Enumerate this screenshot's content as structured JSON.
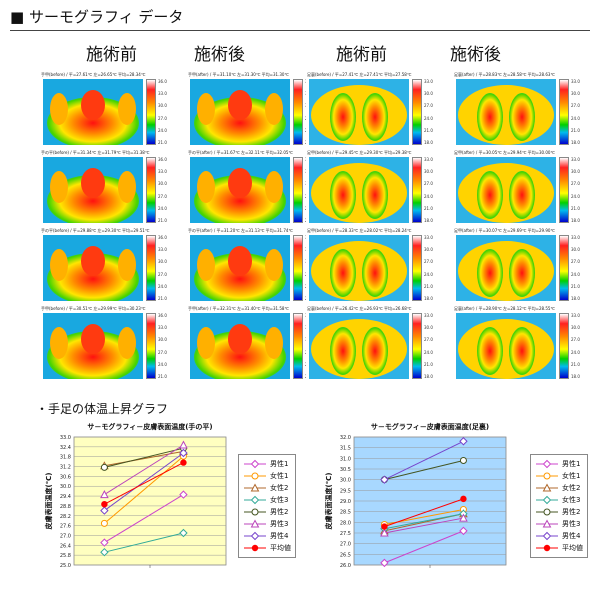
{
  "header": {
    "title": "■ サーモグラフィ データ"
  },
  "left_group": {
    "before_label": "施術前",
    "after_label": "施術後",
    "panels": [
      {
        "caption": "手甲(before) / 平=27.61℃ 左=26.65℃ 平均=28.34℃",
        "ticks": [
          "36.0",
          "33.0",
          "30.0",
          "27.0",
          "24.0",
          "21.0"
        ]
      },
      {
        "caption": "手甲(after) / 平=31.10℃ 左=31.30℃ 平均=31.30℃",
        "ticks": [
          "36.0",
          "33.0",
          "30.0",
          "27.0",
          "24.0",
          "21.0"
        ]
      },
      {
        "caption": "手の平(before) / 平=31.34℃ 左=31.79℃ 平均=31.38℃",
        "ticks": [
          "36.0",
          "33.0",
          "30.0",
          "27.0",
          "24.0",
          "21.0"
        ]
      },
      {
        "caption": "手の平(after) / 平=31.67℃ 左=32.11℃ 平均=32.05℃",
        "ticks": [
          "36.0",
          "33.0",
          "30.0",
          "27.0",
          "24.0",
          "21.0"
        ]
      },
      {
        "caption": "手の平(before) / 平=29.88℃ 左=29.30℃ 平均=29.51℃",
        "ticks": [
          "36.0",
          "33.0",
          "30.0",
          "27.0",
          "24.0",
          "21.0"
        ]
      },
      {
        "caption": "手の平(after) / 平=31.20℃ 左=31.13℃ 平均=31.74℃",
        "ticks": [
          "36.0",
          "33.0",
          "30.0",
          "27.0",
          "24.0",
          "21.0"
        ]
      },
      {
        "caption": "手甲(before) / 平=30.51℃ 左=29.99℃ 平均=30.23℃",
        "ticks": [
          "36.0",
          "33.0",
          "30.0",
          "27.0",
          "24.0",
          "21.0"
        ]
      },
      {
        "caption": "手甲(after) / 平=32.31℃ 左=31.40℃ 平均=31.58℃",
        "ticks": [
          "36.0",
          "33.0",
          "30.0",
          "27.0",
          "24.0",
          "21.0"
        ]
      }
    ]
  },
  "right_group": {
    "before_label": "施術前",
    "after_label": "施術後",
    "panels": [
      {
        "caption": "足裏(before) / 平=27.41℃ 左=27.41℃ 平均=27.58℃",
        "ticks": [
          "33.0",
          "30.0",
          "27.0",
          "24.0",
          "21.0",
          "18.0"
        ]
      },
      {
        "caption": "足裏(after) / 平=28.83℃ 左=28.58℃ 平均=28.63℃",
        "ticks": [
          "33.0",
          "30.0",
          "27.0",
          "24.0",
          "21.0",
          "18.0"
        ]
      },
      {
        "caption": "足甲(before) / 平=29.45℃ 左=29.30℃ 平均=29.38℃",
        "ticks": [
          "33.0",
          "30.0",
          "27.0",
          "24.0",
          "21.0",
          "18.0"
        ]
      },
      {
        "caption": "足甲(after) / 平=30.05℃ 左=29.94℃ 平均=30.00℃",
        "ticks": [
          "33.0",
          "30.0",
          "27.0",
          "24.0",
          "21.0",
          "18.0"
        ]
      },
      {
        "caption": "足甲(before) / 平=28.33℃ 左=28.02℃ 平均=28.24℃",
        "ticks": [
          "33.0",
          "30.0",
          "27.0",
          "24.0",
          "21.0",
          "18.0"
        ]
      },
      {
        "caption": "足甲(after) / 平=30.07℃ 左=29.69℃ 平均=29.90℃",
        "ticks": [
          "33.0",
          "30.0",
          "27.0",
          "24.0",
          "21.0",
          "18.0"
        ]
      },
      {
        "caption": "足裏(before) / 平=26.42℃ 左=26.93℃ 平均=26.68℃",
        "ticks": [
          "33.0",
          "30.0",
          "27.0",
          "24.0",
          "21.0",
          "18.0"
        ]
      },
      {
        "caption": "足裏(after) / 平=28.90℃ 左=28.12℃ 平均=28.55℃",
        "ticks": [
          "33.0",
          "30.0",
          "27.0",
          "24.0",
          "21.0",
          "18.0"
        ]
      }
    ]
  },
  "graphs_section": {
    "label": "・手足の体温上昇グラフ"
  },
  "colors": {
    "hand_bg": "#ffffc0",
    "foot_bg": "#a8d8ff",
    "average": "#ff0000"
  },
  "chart_data": [
    {
      "type": "line",
      "title": "サ－モグラフィ－皮膚表面温度(手の平)",
      "ylabel": "皮膚表面温度(℃)",
      "ylim": [
        25.0,
        33.0
      ],
      "yticks": [
        "33.0",
        "32.4",
        "31.8",
        "31.2",
        "30.6",
        "30.0",
        "29.4",
        "28.8",
        "28.2",
        "27.6",
        "27.0",
        "26.4",
        "25.8",
        "25.0"
      ],
      "x": [
        0,
        1
      ],
      "series": [
        {
          "name": "男性1",
          "values": [
            26.4,
            29.4
          ],
          "color": "#cc44cc",
          "marker": "diamond"
        },
        {
          "name": "女性1",
          "values": [
            27.6,
            31.8
          ],
          "color": "#ff9900",
          "marker": "circle"
        },
        {
          "name": "女性2",
          "values": [
            31.2,
            32.1
          ],
          "color": "#b0682c",
          "marker": "triangle"
        },
        {
          "name": "女性3",
          "values": [
            25.8,
            27.0
          ],
          "color": "#33aa99",
          "marker": "diamond"
        },
        {
          "name": "男性2",
          "values": [
            31.1,
            32.3
          ],
          "color": "#445522",
          "marker": "circle"
        },
        {
          "name": "男性3",
          "values": [
            29.4,
            32.5
          ],
          "color": "#bb44bb",
          "marker": "triangle"
        },
        {
          "name": "男性4",
          "values": [
            28.4,
            32.0
          ],
          "color": "#7744cc",
          "marker": "diamond"
        },
        {
          "name": "平均値",
          "values": [
            28.8,
            31.4
          ],
          "color": "#ff0000",
          "marker": "dot"
        }
      ]
    },
    {
      "type": "line",
      "title": "サ－モグラフィ－皮膚表面温度(足裏)",
      "ylabel": "皮膚表面温度(℃)",
      "ylim": [
        26.0,
        32.0
      ],
      "yticks": [
        "32.0",
        "31.5",
        "31.0",
        "30.5",
        "30.0",
        "29.5",
        "29.0",
        "28.5",
        "28.0",
        "27.5",
        "27.0",
        "26.5",
        "26.0"
      ],
      "x": [
        0,
        1
      ],
      "series": [
        {
          "name": "男性1",
          "values": [
            26.1,
            27.6
          ],
          "color": "#cc44cc",
          "marker": "diamond"
        },
        {
          "name": "女性1",
          "values": [
            27.9,
            28.6
          ],
          "color": "#ff9900",
          "marker": "circle"
        },
        {
          "name": "女性2",
          "values": [
            27.6,
            28.4
          ],
          "color": "#b0682c",
          "marker": "triangle"
        },
        {
          "name": "女性3",
          "values": [
            27.7,
            28.4
          ],
          "color": "#33aa99",
          "marker": "diamond"
        },
        {
          "name": "男性2",
          "values": [
            30.0,
            30.9
          ],
          "color": "#445522",
          "marker": "circle"
        },
        {
          "name": "男性3",
          "values": [
            27.5,
            28.2
          ],
          "color": "#bb44bb",
          "marker": "triangle"
        },
        {
          "name": "男性4",
          "values": [
            30.0,
            31.8
          ],
          "color": "#7744cc",
          "marker": "diamond"
        },
        {
          "name": "平均値",
          "values": [
            27.8,
            29.1
          ],
          "color": "#ff0000",
          "marker": "dot"
        }
      ]
    }
  ]
}
